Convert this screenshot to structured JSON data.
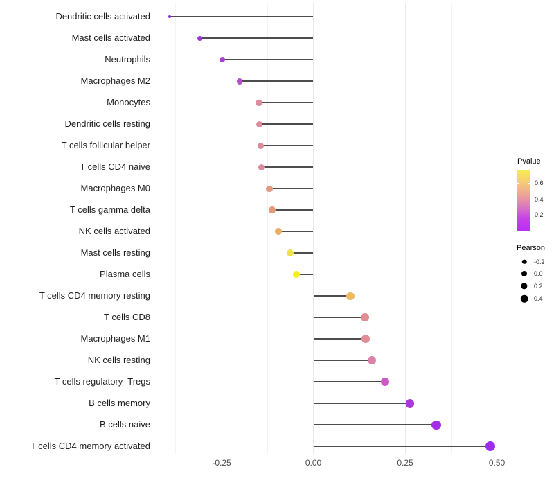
{
  "chart_data": {
    "type": "lollipop",
    "title": "",
    "xlabel": "",
    "ylabel": "",
    "grid": "major+minor vertical",
    "xlim": [
      -0.405,
      0.525
    ],
    "x_axis": {
      "major_ticks": [
        {
          "value": -0.25,
          "label": "-0.25"
        },
        {
          "value": 0.0,
          "label": "0.00"
        },
        {
          "value": 0.25,
          "label": "0.25"
        },
        {
          "value": 0.5,
          "label": "0.50"
        }
      ],
      "minor_ticks": [
        -0.375,
        -0.125,
        0.125,
        0.375
      ]
    },
    "points": [
      {
        "label": "Dendritic cells activated",
        "pearson": -0.392,
        "color": "#8729DB"
      },
      {
        "label": "Mast cells activated",
        "pearson": -0.309,
        "color": "#9C36D6"
      },
      {
        "label": "Neutrophils",
        "pearson": -0.248,
        "color": "#A841D2"
      },
      {
        "label": "Macrophages M2",
        "pearson": -0.201,
        "color": "#B450CE"
      },
      {
        "label": "Monocytes",
        "pearson": -0.148,
        "color": "#DD8C9C"
      },
      {
        "label": "Dendritic cells resting",
        "pearson": -0.147,
        "color": "#DD8C9C"
      },
      {
        "label": "T cells follicular helper",
        "pearson": -0.143,
        "color": "#DC8A9A"
      },
      {
        "label": "T cells CD4 naive",
        "pearson": -0.141,
        "color": "#DD8B9B"
      },
      {
        "label": "Macrophages M0",
        "pearson": -0.12,
        "color": "#E29A82"
      },
      {
        "label": "T cells gamma delta",
        "pearson": -0.112,
        "color": "#E19B7B"
      },
      {
        "label": "NK cells activated",
        "pearson": -0.096,
        "color": "#EAAE67"
      },
      {
        "label": "Mast cells resting",
        "pearson": -0.064,
        "color": "#F0E24C"
      },
      {
        "label": "Plasma cells",
        "pearson": -0.046,
        "color": "#F4ED18"
      },
      {
        "label": "T cells CD4 memory resting",
        "pearson": 0.101,
        "color": "#ECBA62"
      },
      {
        "label": "T cells CD8",
        "pearson": 0.14,
        "color": "#E08D92"
      },
      {
        "label": "Macrophages M1",
        "pearson": 0.142,
        "color": "#E08D96"
      },
      {
        "label": "NK cells resting",
        "pearson": 0.159,
        "color": "#DC81A8"
      },
      {
        "label": "T cells regulatory  Tregs",
        "pearson": 0.195,
        "color": "#CB59C6"
      },
      {
        "label": "B cells memory",
        "pearson": 0.263,
        "color": "#AA39DA"
      },
      {
        "label": "B cells naive",
        "pearson": 0.335,
        "color": "#A52BE6"
      },
      {
        "label": "T cells CD4 memory activated",
        "pearson": 0.483,
        "color": "#9D2BF0"
      }
    ],
    "legend": {
      "pvalue": {
        "title": "Pvalue",
        "tick_labels": [
          "0.6",
          "0.4",
          "0.2"
        ],
        "gradient_top_to_bottom": [
          "#F9EC4E",
          "#F5CE74",
          "#EDA694",
          "#DC79BE",
          "#C741E8",
          "#B92EF4"
        ]
      },
      "pearson": {
        "title": "Pearson",
        "tick_labels": [
          "-0.2",
          "0.0",
          "0.2",
          "0.4"
        ],
        "dot_color": "#000000"
      }
    },
    "stem_color": "#4d4d4d"
  }
}
